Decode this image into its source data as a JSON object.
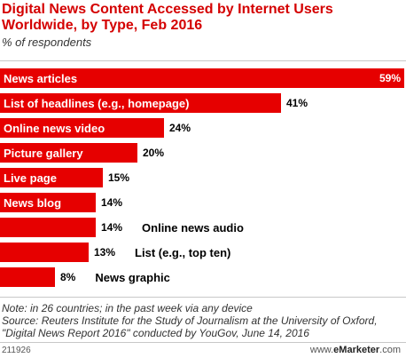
{
  "header": {
    "title": "Digital News Content Accessed by Internet Users Worldwide, by Type, Feb 2016",
    "subtitle": "% of respondents"
  },
  "chart_data": {
    "type": "bar",
    "orientation": "horizontal",
    "categories": [
      "News articles",
      "List of headlines (e.g., homepage)",
      "Online news video",
      "Picture gallery",
      "Live page",
      "News blog",
      "Online news audio",
      "List (e.g., top ten)",
      "News graphic"
    ],
    "values": [
      59,
      41,
      24,
      20,
      15,
      14,
      14,
      13,
      8
    ],
    "value_labels": [
      "59%",
      "41%",
      "24%",
      "20%",
      "15%",
      "14%",
      "14%",
      "13%",
      "8%"
    ],
    "unit": "%",
    "xlim": [
      0,
      59
    ],
    "bar_color": "#e60000",
    "grid": false,
    "legend": "none"
  },
  "notes": {
    "note": "Note: in 26 countries; in the past week via any device",
    "source": "Source: Reuters Institute for the Study of Journalism at the University of Oxford, \"Digital News Report 2016\" conducted by YouGov, June 14, 2016"
  },
  "footer": {
    "chart_id": "211926",
    "site_prefix": "www.",
    "site_brand": "eMarketer",
    "site_suffix": ".com"
  }
}
